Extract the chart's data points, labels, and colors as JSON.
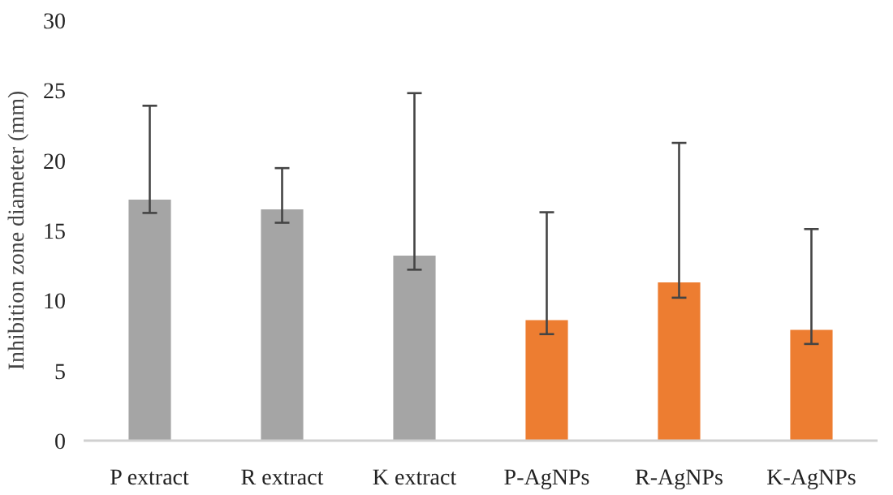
{
  "chart_data": {
    "type": "bar",
    "ylabel": "Inhibition zone diameter (mm)",
    "categories": [
      "P extract",
      "R extract",
      "K extract",
      "P-AgNPs",
      "R-AgNPs",
      "K-AgNPs"
    ],
    "values": [
      17.2,
      16.5,
      13.2,
      8.6,
      11.3,
      7.9
    ],
    "colors": [
      "#a5a5a5",
      "#a5a5a5",
      "#a5a5a5",
      "#ed7d31",
      "#ed7d31",
      "#ed7d31"
    ],
    "errors": [
      [
        16.25,
        23.9
      ],
      [
        15.55,
        19.45
      ],
      [
        12.2,
        24.8
      ],
      [
        7.6,
        16.3
      ],
      [
        10.2,
        21.25
      ],
      [
        6.9,
        15.1
      ]
    ],
    "ylim": [
      0,
      30
    ],
    "yticks": [
      0,
      5,
      10,
      15,
      20,
      25,
      30
    ],
    "grid": false
  }
}
